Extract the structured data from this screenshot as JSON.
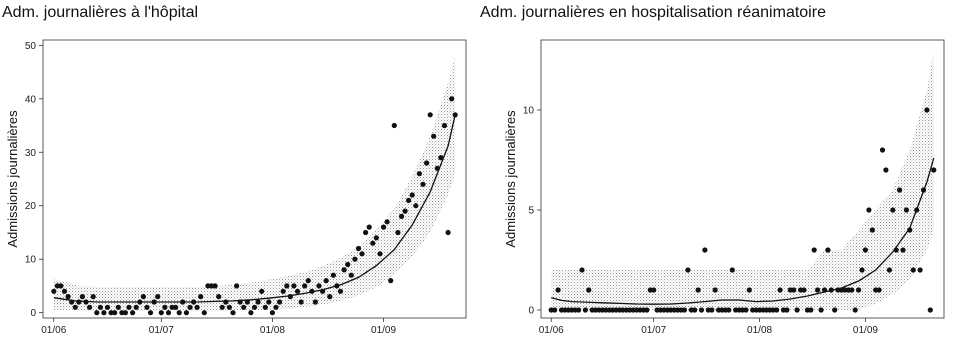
{
  "chart_data": [
    {
      "type": "scatter",
      "title": "Adm. journalières à l'hôpital",
      "ylabel": "Admissions journalières",
      "xlabel": "",
      "x_tick_labels": [
        "01/06",
        "01/07",
        "01/08",
        "01/09"
      ],
      "y_ticks": [
        0,
        10,
        20,
        30,
        40,
        50
      ],
      "ylim": [
        -1,
        51
      ],
      "x_start_label": "01/06",
      "n_days": 113,
      "grid": false,
      "series": [
        {
          "type": "points",
          "x": [
            0,
            1,
            2,
            3,
            4,
            5,
            6,
            7,
            8,
            9,
            10,
            11,
            12,
            13,
            14,
            15,
            16,
            17,
            18,
            19,
            20,
            21,
            22,
            23,
            24,
            25,
            26,
            27,
            28,
            29,
            30,
            31,
            32,
            33,
            34,
            35,
            36,
            37,
            38,
            39,
            40,
            41,
            42,
            43,
            44,
            45,
            46,
            47,
            48,
            49,
            50,
            51,
            52,
            53,
            54,
            55,
            56,
            57,
            58,
            59,
            60,
            61,
            62,
            63,
            64,
            65,
            66,
            67,
            68,
            69,
            70,
            71,
            72,
            73,
            74,
            75,
            76,
            77,
            78,
            79,
            80,
            81,
            82,
            83,
            84,
            85,
            86,
            87,
            88,
            89,
            90,
            91,
            92,
            93,
            94,
            95,
            96,
            97,
            98,
            99,
            100,
            101,
            102,
            103,
            104,
            105,
            106,
            107,
            108,
            109,
            110,
            111,
            112
          ],
          "values": [
            4,
            5,
            5,
            4,
            3,
            2,
            1,
            2,
            3,
            2,
            1,
            3,
            0,
            1,
            0,
            1,
            0,
            0,
            1,
            0,
            0,
            1,
            0,
            1,
            2,
            3,
            1,
            0,
            2,
            3,
            0,
            1,
            0,
            1,
            1,
            0,
            2,
            0,
            1,
            2,
            1,
            3,
            0,
            5,
            5,
            5,
            3,
            1,
            2,
            1,
            0,
            5,
            2,
            1,
            2,
            0,
            1,
            2,
            4,
            1,
            2,
            0,
            1,
            2,
            4,
            5,
            3,
            5,
            4,
            2,
            5,
            6,
            4,
            2,
            5,
            4,
            6,
            3,
            7,
            5,
            4,
            8,
            9,
            7,
            10,
            12,
            11,
            15,
            16,
            13,
            14,
            11,
            16,
            17,
            6,
            35,
            15,
            18,
            19,
            21,
            22,
            20,
            26,
            24,
            28,
            37,
            33,
            27,
            29,
            35,
            15,
            40,
            37
          ]
        },
        {
          "type": "trend-line",
          "x": [
            0,
            3,
            6,
            9,
            12,
            15,
            20,
            25,
            30,
            35,
            40,
            45,
            50,
            55,
            60,
            65,
            70,
            75,
            80,
            85,
            90,
            95,
            100,
            105,
            110,
            112
          ],
          "values": [
            2.8,
            2.5,
            2.2,
            2.1,
            2.0,
            2.0,
            2.0,
            2.0,
            2.0,
            2.0,
            2.0,
            2.1,
            2.2,
            2.4,
            2.7,
            3.1,
            3.6,
            4.3,
            5.2,
            6.6,
            8.8,
            11.8,
            16.4,
            22.6,
            31.2,
            37.0
          ]
        },
        {
          "type": "interval-band",
          "x": [
            0,
            3,
            6,
            9,
            12,
            15,
            20,
            25,
            30,
            35,
            40,
            45,
            50,
            55,
            60,
            65,
            70,
            75,
            80,
            85,
            90,
            95,
            100,
            105,
            110,
            112
          ],
          "lower": [
            0.5,
            0.5,
            0.4,
            0.3,
            0.3,
            0.3,
            0.3,
            0.3,
            0.3,
            0.3,
            0.3,
            0.3,
            0.3,
            0.4,
            0.5,
            0.7,
            1.0,
            1.5,
            2.2,
            3.2,
            4.8,
            7.0,
            10.5,
            15.0,
            22.0,
            26.0
          ],
          "upper": [
            6.2,
            5.8,
            5.2,
            4.9,
            4.8,
            4.8,
            4.8,
            4.8,
            4.8,
            4.8,
            4.8,
            5.0,
            5.2,
            5.6,
            6.2,
            6.8,
            7.6,
            8.7,
            10.2,
            12.3,
            15.5,
            19.5,
            25.5,
            33.0,
            43.0,
            48.0
          ]
        }
      ]
    },
    {
      "type": "scatter",
      "title": "Adm. journalières en hospitalisation réanimatoire",
      "ylabel": "Admissions journalières",
      "xlabel": "",
      "x_tick_labels": [
        "01/06",
        "01/07",
        "01/08",
        "01/09"
      ],
      "y_ticks": [
        0,
        5,
        10
      ],
      "ylim": [
        -0.4,
        13.5
      ],
      "x_start_label": "01/06",
      "n_days": 113,
      "grid": false,
      "series": [
        {
          "type": "points",
          "x": [
            0,
            1,
            2,
            3,
            4,
            5,
            6,
            7,
            8,
            9,
            10,
            11,
            12,
            13,
            14,
            15,
            16,
            17,
            18,
            19,
            20,
            21,
            22,
            23,
            24,
            25,
            26,
            27,
            28,
            29,
            30,
            31,
            32,
            33,
            34,
            35,
            36,
            37,
            38,
            39,
            40,
            41,
            42,
            43,
            44,
            45,
            46,
            47,
            48,
            49,
            50,
            51,
            52,
            53,
            54,
            55,
            56,
            57,
            58,
            59,
            60,
            61,
            62,
            63,
            64,
            65,
            66,
            67,
            68,
            69,
            70,
            71,
            72,
            73,
            74,
            75,
            76,
            77,
            78,
            79,
            80,
            81,
            82,
            83,
            84,
            85,
            86,
            87,
            88,
            89,
            90,
            91,
            92,
            93,
            94,
            95,
            96,
            97,
            98,
            99,
            100,
            101,
            102,
            103,
            104,
            105,
            106,
            107,
            108,
            109,
            110,
            111,
            112
          ],
          "values": [
            0,
            0,
            1,
            0,
            0,
            0,
            0,
            0,
            0,
            2,
            0,
            1,
            0,
            0,
            0,
            0,
            0,
            0,
            0,
            0,
            0,
            0,
            0,
            0,
            0,
            0,
            0,
            0,
            0,
            1,
            1,
            0,
            0,
            0,
            0,
            0,
            0,
            0,
            0,
            0,
            2,
            0,
            0,
            1,
            0,
            3,
            0,
            0,
            1,
            0,
            0,
            0,
            0,
            2,
            0,
            0,
            0,
            0,
            1,
            0,
            0,
            0,
            0,
            0,
            0,
            0,
            0,
            1,
            0,
            0,
            1,
            1,
            0,
            1,
            1,
            0,
            0,
            3,
            1,
            0,
            1,
            3,
            1,
            0,
            1,
            1,
            1,
            1,
            1,
            0,
            1,
            2,
            3,
            5,
            4,
            1,
            1,
            8,
            7,
            2,
            5,
            3,
            6,
            3,
            5,
            4,
            2,
            5,
            2,
            6,
            10,
            0,
            7
          ]
        },
        {
          "type": "trend-line",
          "x": [
            0,
            3,
            6,
            9,
            12,
            15,
            20,
            25,
            30,
            35,
            40,
            45,
            50,
            55,
            60,
            65,
            70,
            75,
            80,
            85,
            90,
            95,
            100,
            105,
            110,
            112
          ],
          "values": [
            0.62,
            0.48,
            0.42,
            0.4,
            0.38,
            0.36,
            0.33,
            0.3,
            0.29,
            0.3,
            0.35,
            0.42,
            0.5,
            0.5,
            0.42,
            0.45,
            0.55,
            0.7,
            0.9,
            1.1,
            1.45,
            2.0,
            2.9,
            4.1,
            6.4,
            7.6
          ]
        },
        {
          "type": "interval-band",
          "x": [
            0,
            3,
            6,
            9,
            12,
            15,
            20,
            25,
            30,
            35,
            40,
            45,
            50,
            55,
            60,
            65,
            70,
            75,
            80,
            85,
            90,
            95,
            100,
            105,
            110,
            112
          ],
          "lower": [
            0,
            0,
            0,
            0,
            0,
            0,
            0,
            0,
            0,
            0,
            0,
            0,
            0,
            0,
            0,
            0,
            0,
            0,
            0,
            0,
            0,
            0.3,
            0.8,
            1.5,
            3.0,
            4.0
          ],
          "upper": [
            2,
            2,
            2,
            2,
            2,
            2,
            2,
            2,
            2,
            2,
            2,
            2,
            2,
            2,
            2,
            2,
            2,
            2,
            3,
            3,
            4,
            5,
            6,
            8,
            11,
            13
          ]
        }
      ]
    }
  ]
}
